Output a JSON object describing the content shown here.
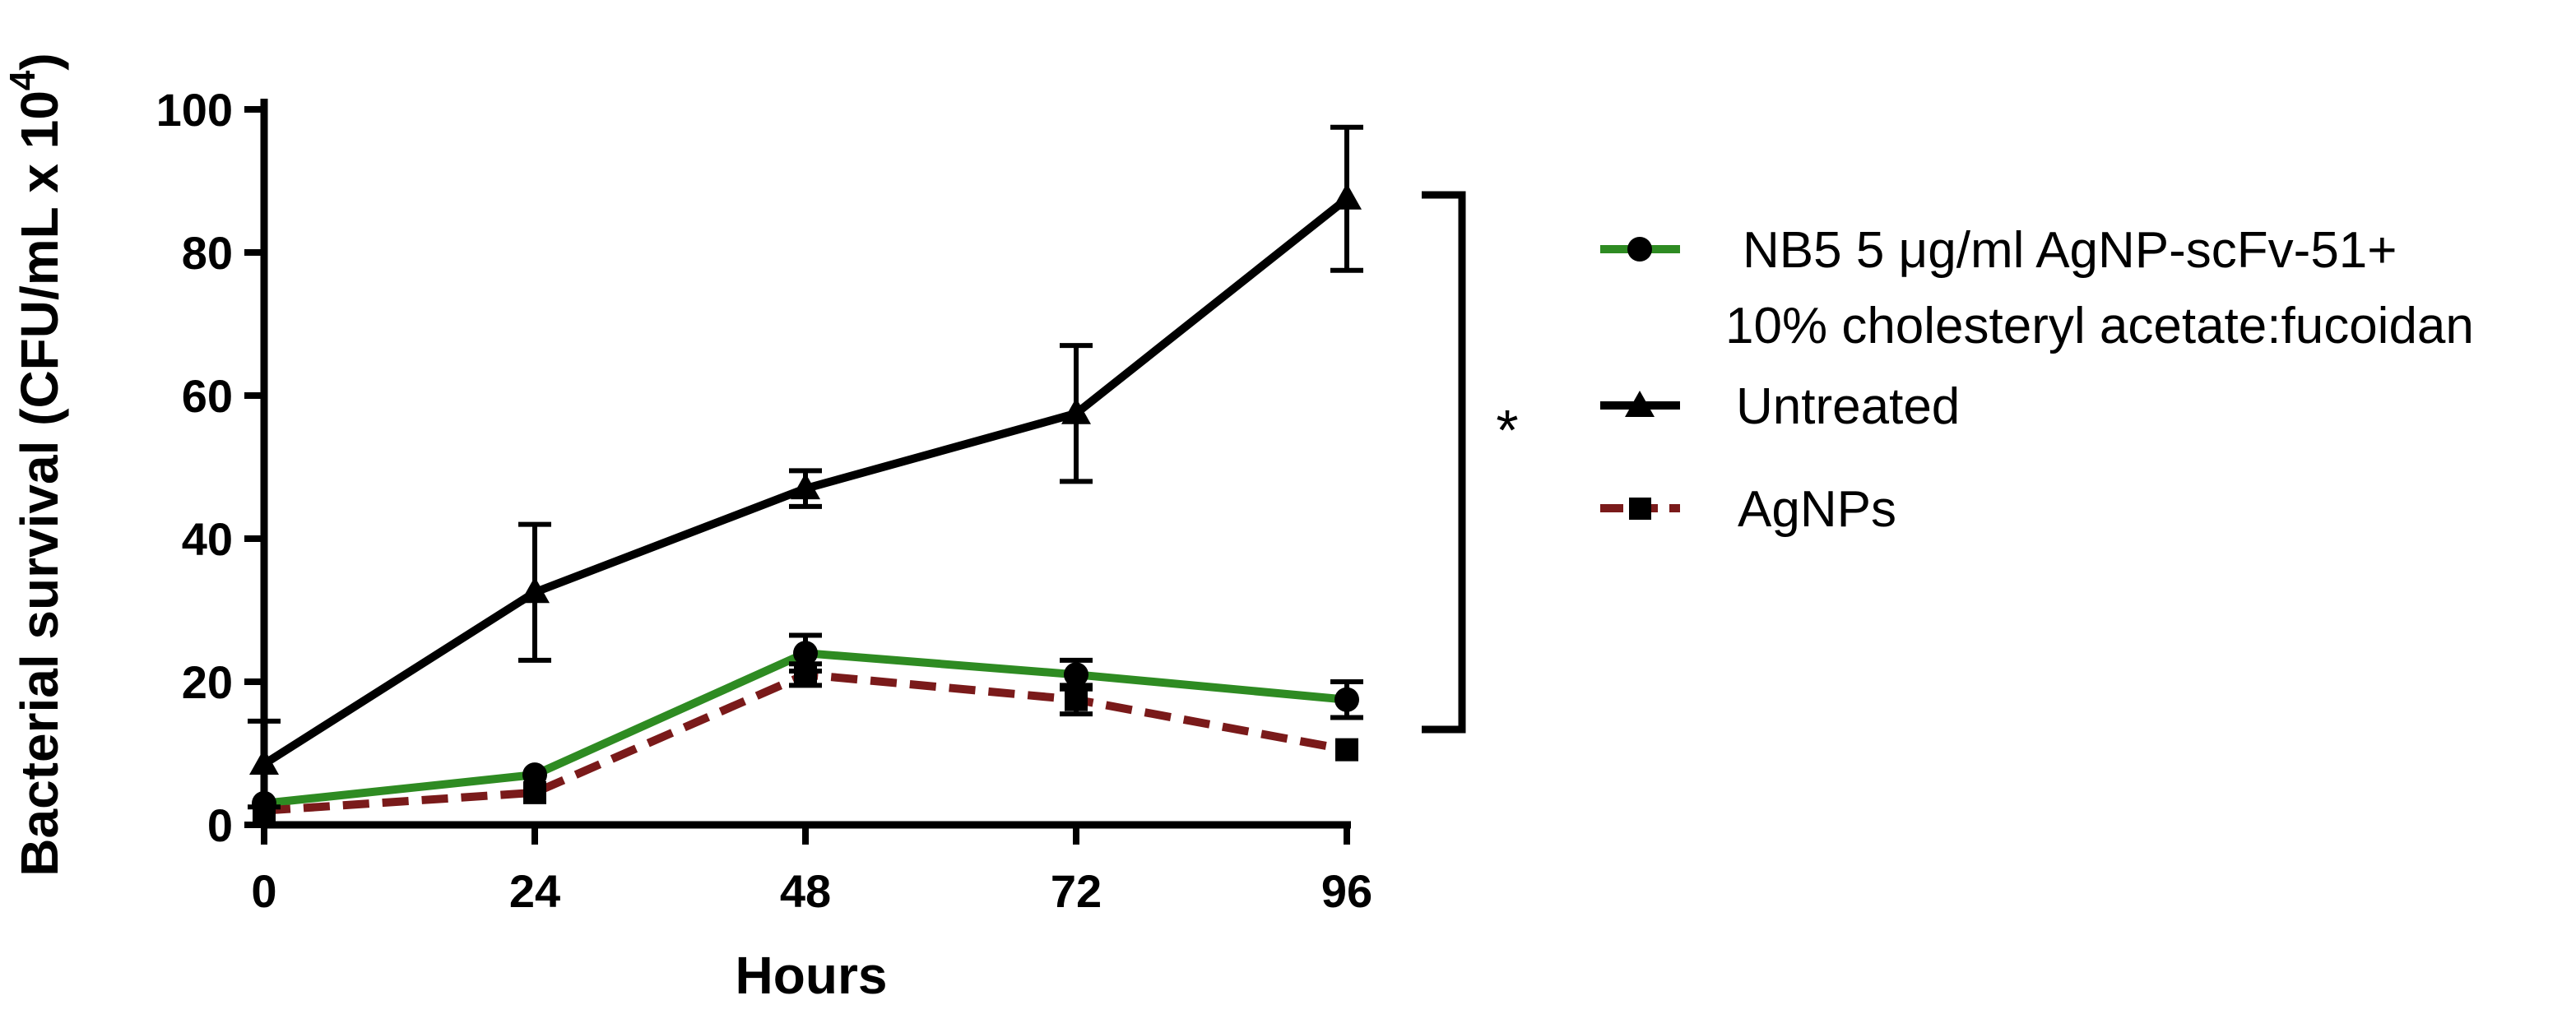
{
  "chart_data": {
    "type": "line",
    "xlabel": "Hours",
    "ylabel_main": "Bacterial survival (CFU/mL x 10",
    "ylabel_sup": "4",
    "ylabel_close": ")",
    "x": [
      0,
      24,
      48,
      72,
      96
    ],
    "xticks": [
      "0",
      "24",
      "48",
      "72",
      "96"
    ],
    "yticks": [
      "0",
      "20",
      "40",
      "60",
      "80",
      "100"
    ],
    "xlim": [
      0,
      96
    ],
    "ylim": [
      0,
      100
    ],
    "grid": false,
    "legend_position": "right",
    "series": [
      {
        "name": "NB5 5 μg/ml AgNP-scFv-51+",
        "name_line2": "10% cholesteryl acetate:fucoidan",
        "color": "#2e8b22",
        "dashed": false,
        "marker": "circle",
        "values": [
          3,
          7,
          24,
          21,
          17.5
        ],
        "errors": [
          1,
          1,
          2.5,
          2,
          2.5
        ]
      },
      {
        "name": "Untreated",
        "color": "#000000",
        "dashed": false,
        "marker": "triangle",
        "values": [
          8.5,
          32.5,
          47,
          57.5,
          87.5
        ],
        "errors": [
          6,
          9.5,
          2.5,
          9.5,
          10
        ]
      },
      {
        "name": "AgNPs",
        "color": "#7a1a1a",
        "dashed": true,
        "marker": "square",
        "values": [
          2,
          4.5,
          21,
          17.5,
          10.5
        ],
        "errors": [
          0.5,
          1,
          1.5,
          2,
          1
        ]
      }
    ],
    "annotation": "*"
  }
}
